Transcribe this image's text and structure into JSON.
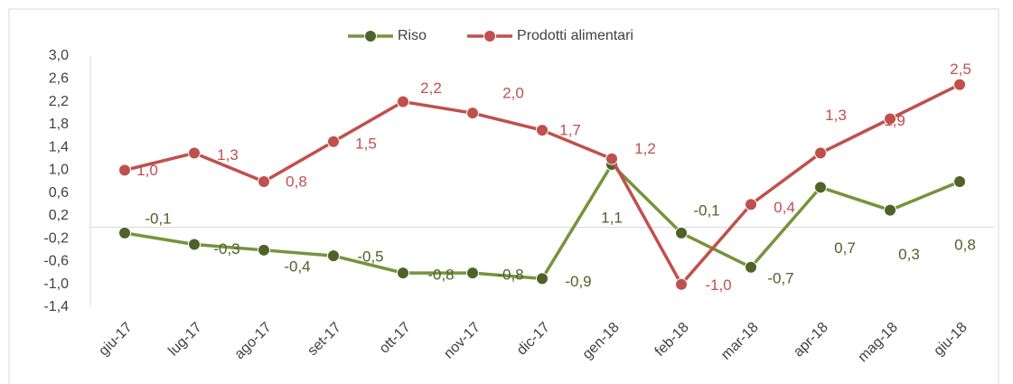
{
  "chart_data": {
    "type": "line",
    "categories": [
      "giu-17",
      "lug-17",
      "ago-17",
      "set-17",
      "ott-17",
      "nov-17",
      "dic-17",
      "gen-18",
      "feb-18",
      "mar-18",
      "apr-18",
      "mag-18",
      "giu-18"
    ],
    "series": [
      {
        "name": "Riso",
        "color": "#77933c",
        "marker_color": "#4f6228",
        "values": [
          -0.1,
          -0.3,
          -0.4,
          -0.5,
          -0.8,
          -0.8,
          -0.9,
          1.1,
          -0.1,
          -0.7,
          0.7,
          0.3,
          0.8
        ],
        "value_labels": [
          "-0,1",
          "-0,3",
          "-0,4",
          "-0,5",
          "-0,8",
          "-0,8",
          "-0,9",
          "1,1",
          "-0,1",
          "-0,7",
          "0,7",
          "0,3",
          "0,8"
        ]
      },
      {
        "name": "Prodotti alimentari",
        "color": "#c0504d",
        "marker_color": "#c0504d",
        "values": [
          1.0,
          1.3,
          0.8,
          1.5,
          2.2,
          2.0,
          1.7,
          1.2,
          -1.0,
          0.4,
          1.3,
          1.9,
          2.5
        ],
        "value_labels": [
          "1,0",
          "1,3",
          "0,8",
          "1,5",
          "2,2",
          "2,0",
          "1,7",
          "1,2",
          "-1,0",
          "0,4",
          "1,3",
          "1,9",
          "2,5"
        ]
      }
    ],
    "ylim": [
      -1.4,
      3.0
    ],
    "yticks": [
      {
        "value": 3.0,
        "label": "3,0"
      },
      {
        "value": 2.6,
        "label": "2,6"
      },
      {
        "value": 2.2,
        "label": "2,2"
      },
      {
        "value": 1.8,
        "label": "1,8"
      },
      {
        "value": 1.4,
        "label": "1,4"
      },
      {
        "value": 1.0,
        "label": "1,0"
      },
      {
        "value": 0.6,
        "label": "0,6"
      },
      {
        "value": 0.2,
        "label": "0,2"
      },
      {
        "value": -0.2,
        "label": "-0,2"
      },
      {
        "value": -0.6,
        "label": "-0,6"
      },
      {
        "value": -1.0,
        "label": "-1,0"
      },
      {
        "value": -1.4,
        "label": "-1,4"
      }
    ],
    "grid": false,
    "legend": "top"
  }
}
